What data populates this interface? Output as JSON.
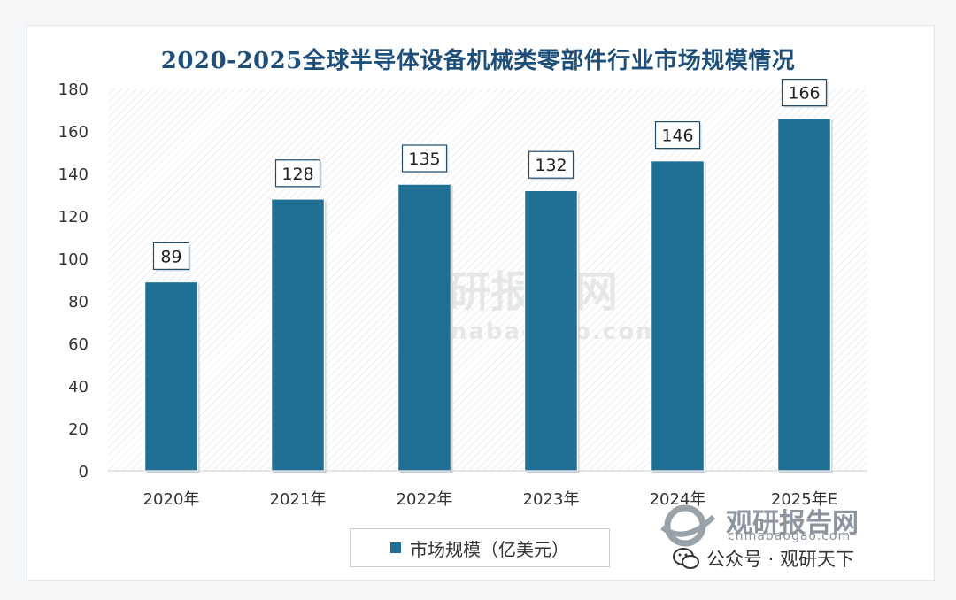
{
  "chart_data": {
    "type": "bar",
    "title": "2020-2025全球半导体设备机械类零部件行业市场规模情况",
    "categories": [
      "2020年",
      "2021年",
      "2022年",
      "2023年",
      "2024年",
      "2025年E"
    ],
    "series": [
      {
        "name": "市场规模（亿美元）",
        "values": [
          89,
          128,
          135,
          132,
          146,
          166
        ]
      }
    ],
    "data_labels": [
      "89",
      "128",
      "135",
      "132",
      "146",
      "166"
    ],
    "ylim": [
      0,
      180
    ],
    "yticks": [
      0,
      20,
      40,
      60,
      80,
      100,
      120,
      140,
      160,
      180
    ],
    "ytick_labels": [
      "0",
      "20",
      "40",
      "60",
      "80",
      "100",
      "120",
      "140",
      "160",
      "180"
    ],
    "bar_color": "#1f6e93",
    "legend_position": "bottom",
    "grid": false
  },
  "watermark": {
    "brand": "观研报告网",
    "site": "chinabaogao.com"
  },
  "footer": {
    "wechat_text": "公众号 · 观研天下",
    "icon": "wechat-icon"
  }
}
